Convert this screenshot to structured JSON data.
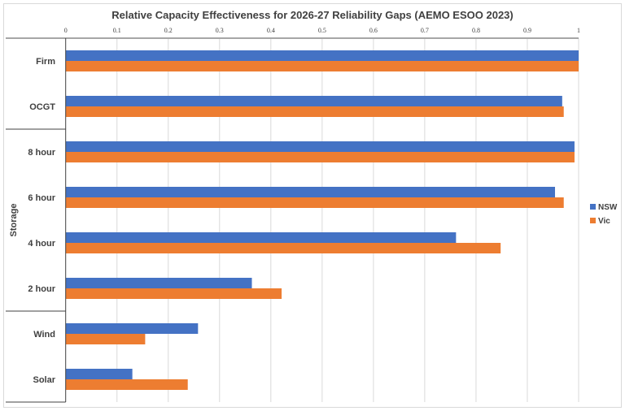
{
  "chart_data": {
    "type": "bar",
    "orientation": "horizontal",
    "title": "Relative Capacity Effectiveness for 2026-27 Reliability Gaps (AEMO ESOO 2023)",
    "xlim": [
      0,
      1
    ],
    "x_ticks": [
      "0",
      "0.1",
      "0.2",
      "0.3",
      "0.4",
      "0.5",
      "0.6",
      "0.7",
      "0.8",
      "0.9",
      "1"
    ],
    "x_axis_position": "top",
    "grid": true,
    "categories": [
      "Firm",
      "OCGT",
      "8 hour",
      "6 hour",
      "4 hour",
      "2 hour",
      "Wind",
      "Solar"
    ],
    "category_groups": [
      {
        "label": "",
        "categories": [
          "Firm",
          "OCGT"
        ]
      },
      {
        "label": "Storage",
        "categories": [
          "8 hour",
          "6 hour",
          "4 hour",
          "2 hour"
        ]
      },
      {
        "label": "",
        "categories": [
          "Wind",
          "Solar"
        ]
      }
    ],
    "series": [
      {
        "name": "NSW",
        "color": "#4472C4",
        "values": [
          1.0,
          0.968,
          0.992,
          0.954,
          0.761,
          0.363,
          0.258,
          0.13
        ]
      },
      {
        "name": "Vic",
        "color": "#ED7D31",
        "values": [
          1.0,
          0.971,
          0.992,
          0.971,
          0.848,
          0.421,
          0.155,
          0.238
        ]
      }
    ],
    "legend_position": "right"
  }
}
